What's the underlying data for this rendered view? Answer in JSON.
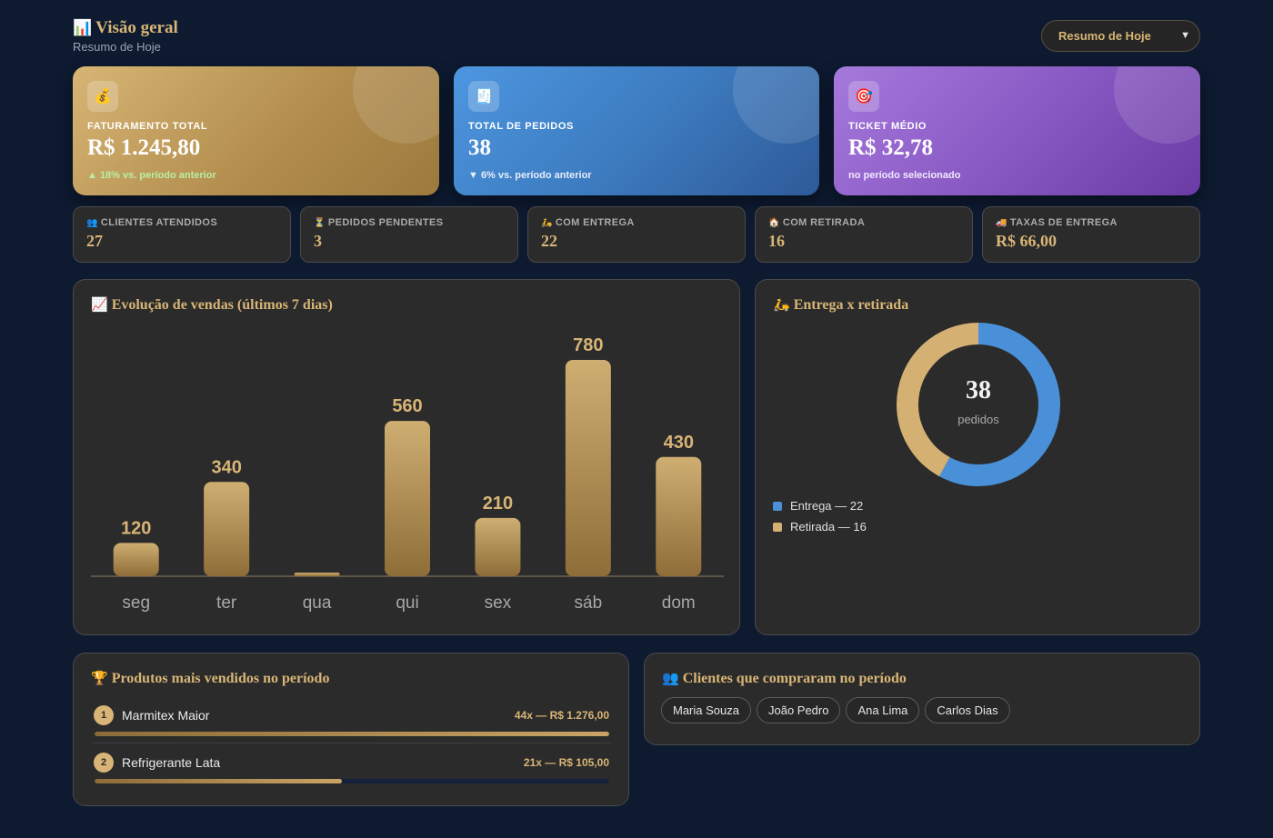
{
  "header": {
    "title": "Visão geral",
    "title_icon": "📊",
    "subtitle": "Resumo de Hoje",
    "period_select": {
      "selected": "Resumo de Hoje",
      "icon": "chevron-down-icon"
    }
  },
  "big_cards": [
    {
      "icon": "💰",
      "icon_name": "money-bag-icon",
      "label": "FATURAMENTO TOTAL",
      "value": "R$ 1.245,80",
      "note": "▲ 18% vs. período anterior",
      "color": "#c7a262"
    },
    {
      "icon": "🧾",
      "icon_name": "receipt-icon",
      "label": "TOTAL DE PEDIDOS",
      "value": "38",
      "note": "▼ 6% vs. período anterior",
      "color": "#3d7cc0"
    },
    {
      "icon": "🎯",
      "icon_name": "target-icon",
      "label": "TICKET MÉDIO",
      "value": "R$ 32,78",
      "note": "no período selecionado",
      "color": "#8a5ac4"
    }
  ],
  "small_cards": [
    {
      "icon": "👥",
      "icon_name": "people-icon",
      "label": "CLIENTES ATENDIDOS",
      "value": "27"
    },
    {
      "icon": "⏳",
      "icon_name": "hourglass-icon",
      "label": "PEDIDOS PENDENTES",
      "value": "3"
    },
    {
      "icon": "🛵",
      "icon_name": "scooter-icon",
      "label": "COM ENTREGA",
      "value": "22"
    },
    {
      "icon": "🏠",
      "icon_name": "house-icon",
      "label": "COM RETIRADA",
      "value": "16"
    },
    {
      "icon": "🚚",
      "icon_name": "truck-icon",
      "label": "TAXAS DE ENTREGA",
      "value": "R$ 66,00"
    }
  ],
  "sales_panel": {
    "title": "Evolução de vendas (últimos 7 dias)",
    "icon": "📈"
  },
  "donut_panel": {
    "title": "Entrega x retirada",
    "icon": "🛵",
    "center_value": "38",
    "center_label": "pedidos",
    "legend": [
      {
        "text": "Entrega — 22",
        "color": "#4a90d9"
      },
      {
        "text": "Retirada — 16",
        "color": "#d4b072"
      }
    ]
  },
  "chart_data": [
    {
      "type": "bar",
      "title": "Evolução de vendas (últimos 7 dias)",
      "categories": [
        "seg",
        "ter",
        "qua",
        "qui",
        "sex",
        "sáb",
        "dom"
      ],
      "values": [
        120,
        340,
        0,
        560,
        210,
        780,
        430
      ],
      "data_labels": [
        "120",
        "340",
        "",
        "560",
        "210",
        "780",
        "430"
      ],
      "ylim": [
        0,
        780
      ],
      "grid": false,
      "color": "#c9a466"
    },
    {
      "type": "pie",
      "title": "Entrega x retirada",
      "categories": [
        "Entrega",
        "Retirada"
      ],
      "values": [
        22,
        16
      ],
      "colors": [
        "#4a90d9",
        "#d4b072"
      ],
      "donut": true
    }
  ],
  "products_panel": {
    "title": "Produtos mais vendidos no período",
    "icon": "🏆",
    "items": [
      {
        "rank": "1",
        "name": "Marmitex Maior",
        "stats": "44x — R$ 1.276,00",
        "share": 1.0
      },
      {
        "rank": "2",
        "name": "Refrigerante Lata",
        "stats": "21x — R$ 105,00",
        "share": 0.48
      }
    ]
  },
  "clients_panel": {
    "title": "Clientes que compraram no período",
    "icon": "👥",
    "clients": [
      "Maria Souza",
      "João Pedro",
      "Ana Lima",
      "Carlos Dias"
    ]
  }
}
